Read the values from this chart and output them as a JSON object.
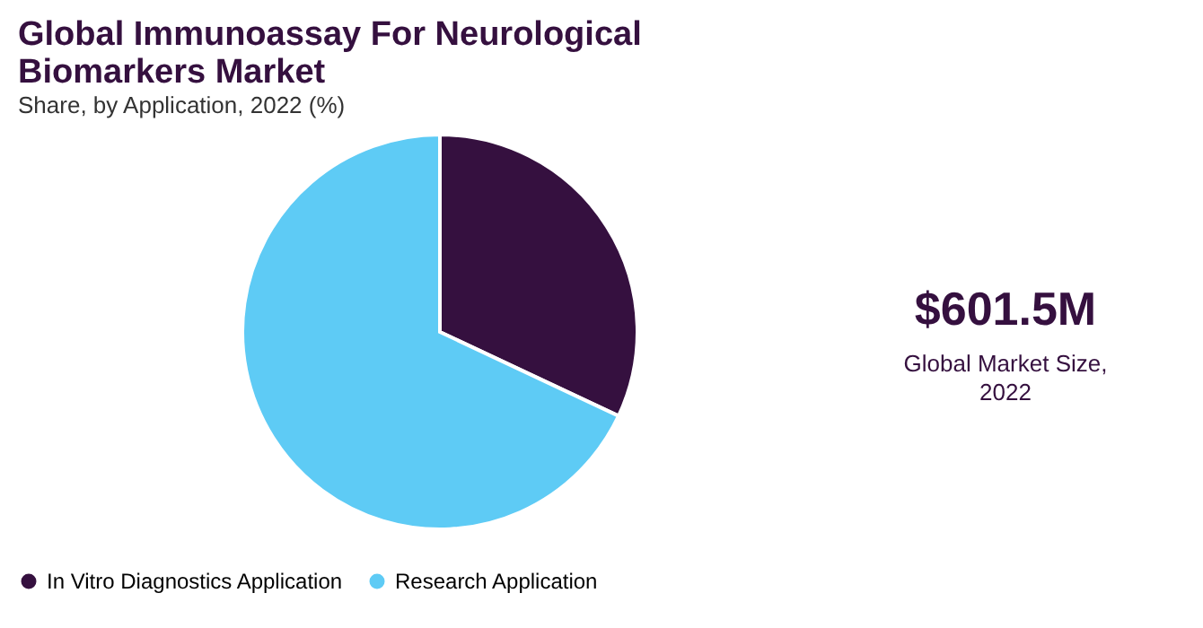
{
  "chart_data": {
    "type": "pie",
    "title": "Global Immunoassay For Neurological Biomarkers Market",
    "subtitle": "Share, by Application, 2022 (%)",
    "categories": [
      "In Vitro Diagnostics Application",
      "Research Application"
    ],
    "values": [
      32,
      68
    ],
    "colors": [
      "#35103f",
      "#5ecbf5"
    ],
    "legend": "bottom",
    "annotations": [
      "$601.5M",
      "Global Market Size, 2022"
    ]
  }
}
